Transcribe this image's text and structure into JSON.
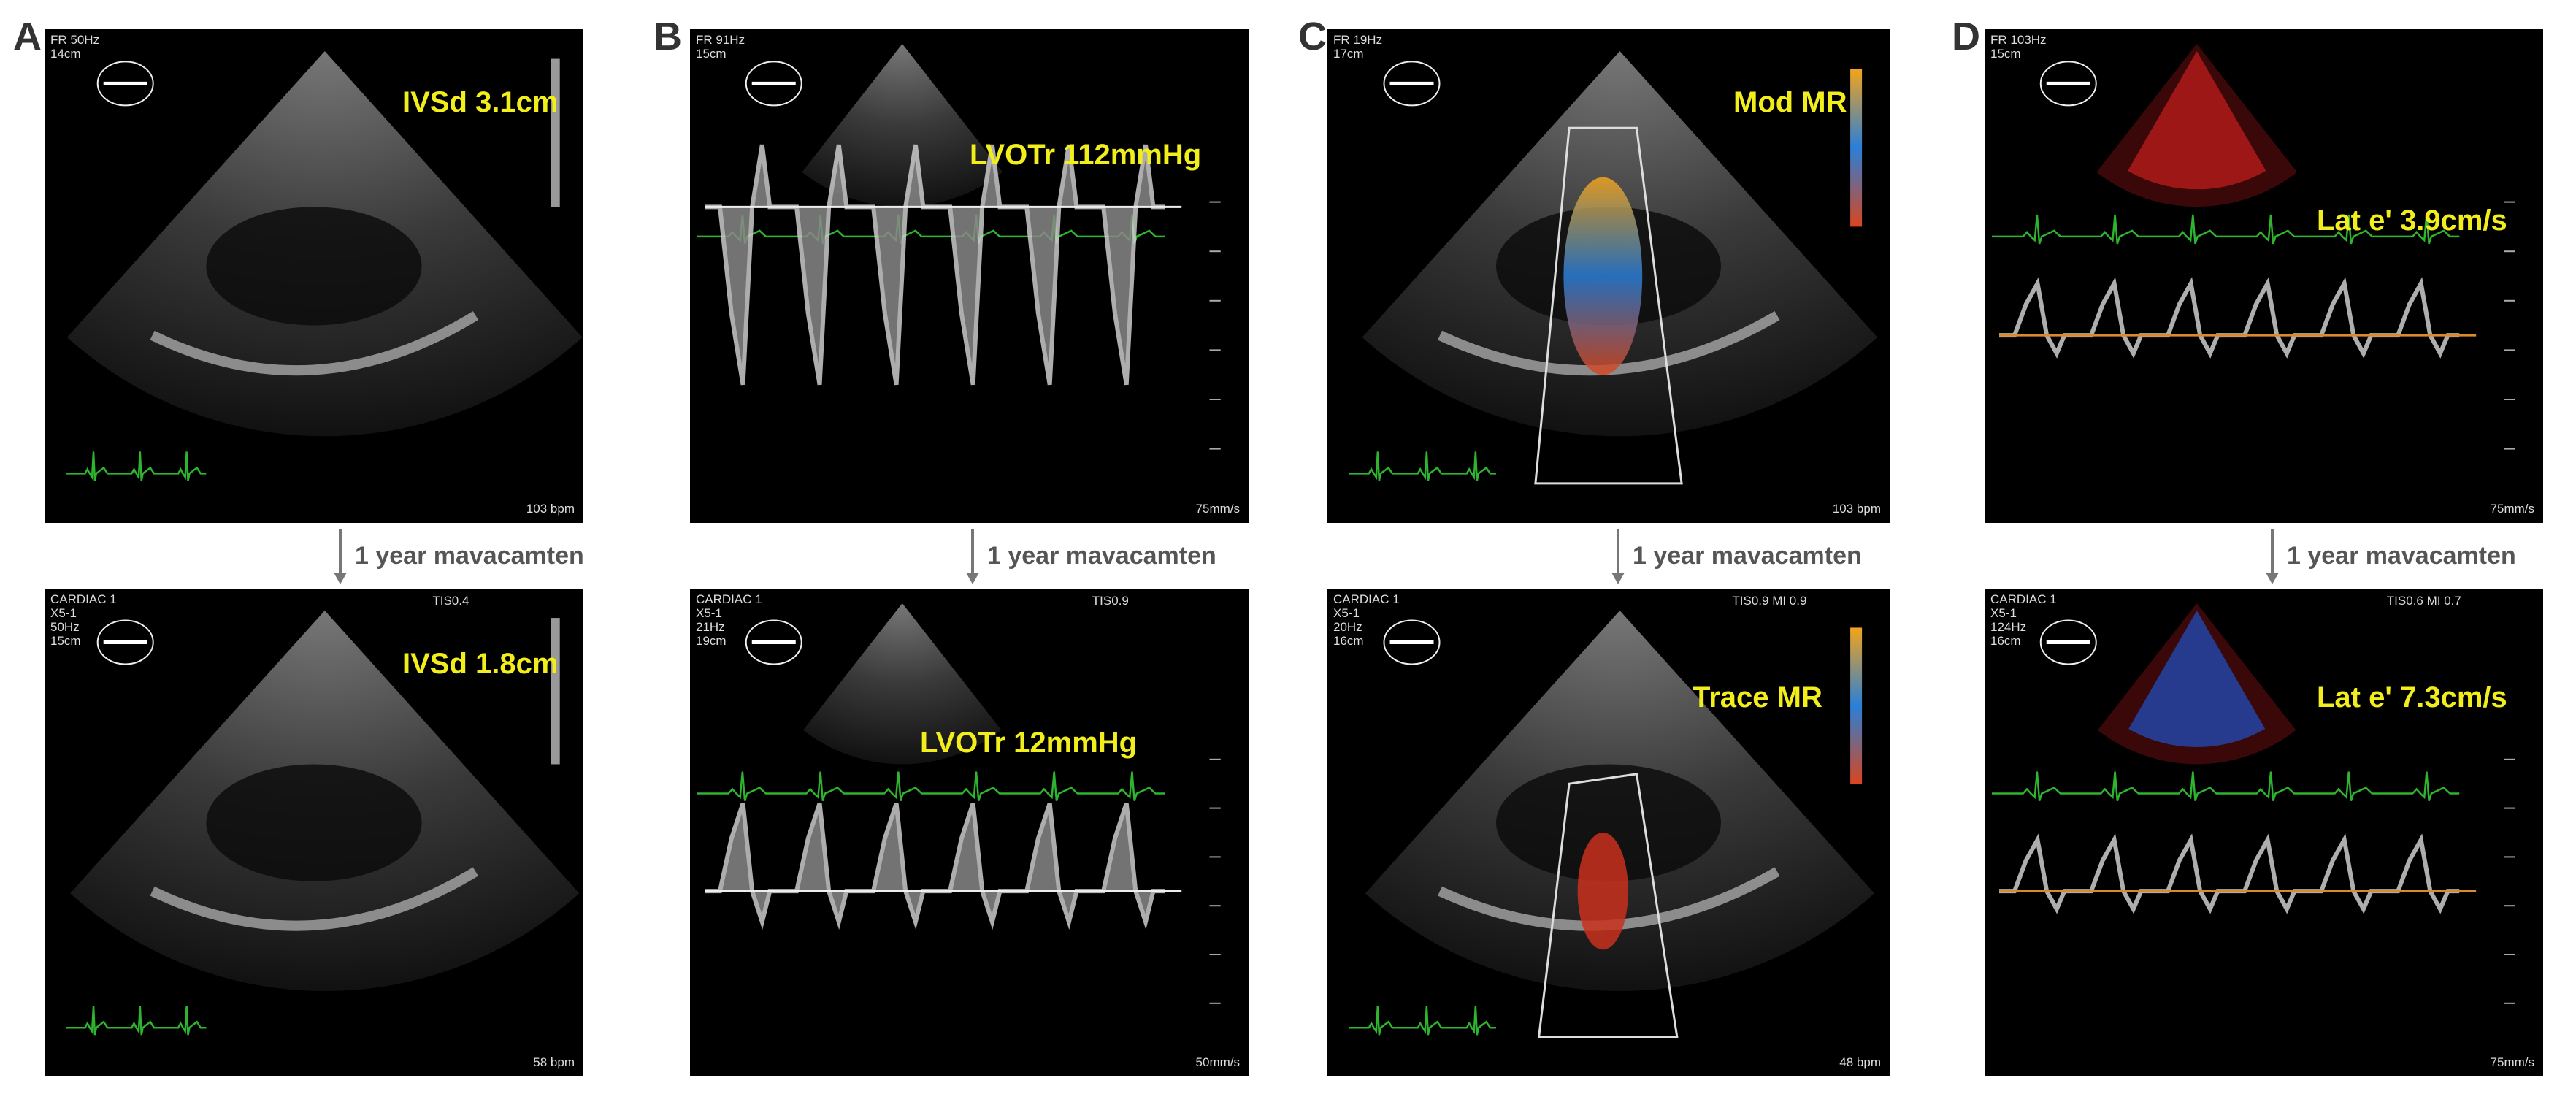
{
  "panels": [
    {
      "letter": "A",
      "top": {
        "measurement": "IVSd 3.1cm",
        "info": [
          "FR 50Hz",
          "14cm"
        ],
        "rate": "103 bpm"
      },
      "arrow_label": "1 year mavacamten",
      "bottom": {
        "measurement": "IVSd 1.8cm",
        "info": [
          "CARDIAC 1",
          "X5-1",
          "50Hz",
          "15cm"
        ],
        "corner": "TIS0.4",
        "rate": "58 bpm"
      }
    },
    {
      "letter": "B",
      "top": {
        "measurement": "LVOTr 112mmHg",
        "info": [
          "FR 91Hz",
          "15cm"
        ],
        "rate": "75mm/s"
      },
      "arrow_label": "1 year mavacamten",
      "bottom": {
        "measurement": "LVOTr 12mmHg",
        "info": [
          "CARDIAC 1",
          "X5-1",
          "21Hz",
          "19cm"
        ],
        "corner": "TIS0.9",
        "rate": "50mm/s"
      }
    },
    {
      "letter": "C",
      "top": {
        "measurement": "Mod MR",
        "info": [
          "FR 19Hz",
          "17cm"
        ],
        "rate": "103 bpm"
      },
      "arrow_label": "1 year mavacamten",
      "bottom": {
        "measurement": "Trace MR",
        "info": [
          "CARDIAC 1",
          "X5-1",
          "20Hz",
          "16cm"
        ],
        "corner": "TIS0.9  MI 0.9",
        "rate": "48 bpm"
      }
    },
    {
      "letter": "D",
      "top": {
        "measurement": "Lat e' 3.9cm/s",
        "info": [
          "FR 103Hz",
          "15cm"
        ],
        "rate": "75mm/s"
      },
      "arrow_label": "1 year mavacamten",
      "bottom": {
        "measurement": "Lat e' 7.3cm/s",
        "info": [
          "CARDIAC 1",
          "X5-1",
          "124Hz",
          "16cm"
        ],
        "corner": "TIS0.6  MI 0.7",
        "rate": "75mm/s"
      }
    }
  ]
}
